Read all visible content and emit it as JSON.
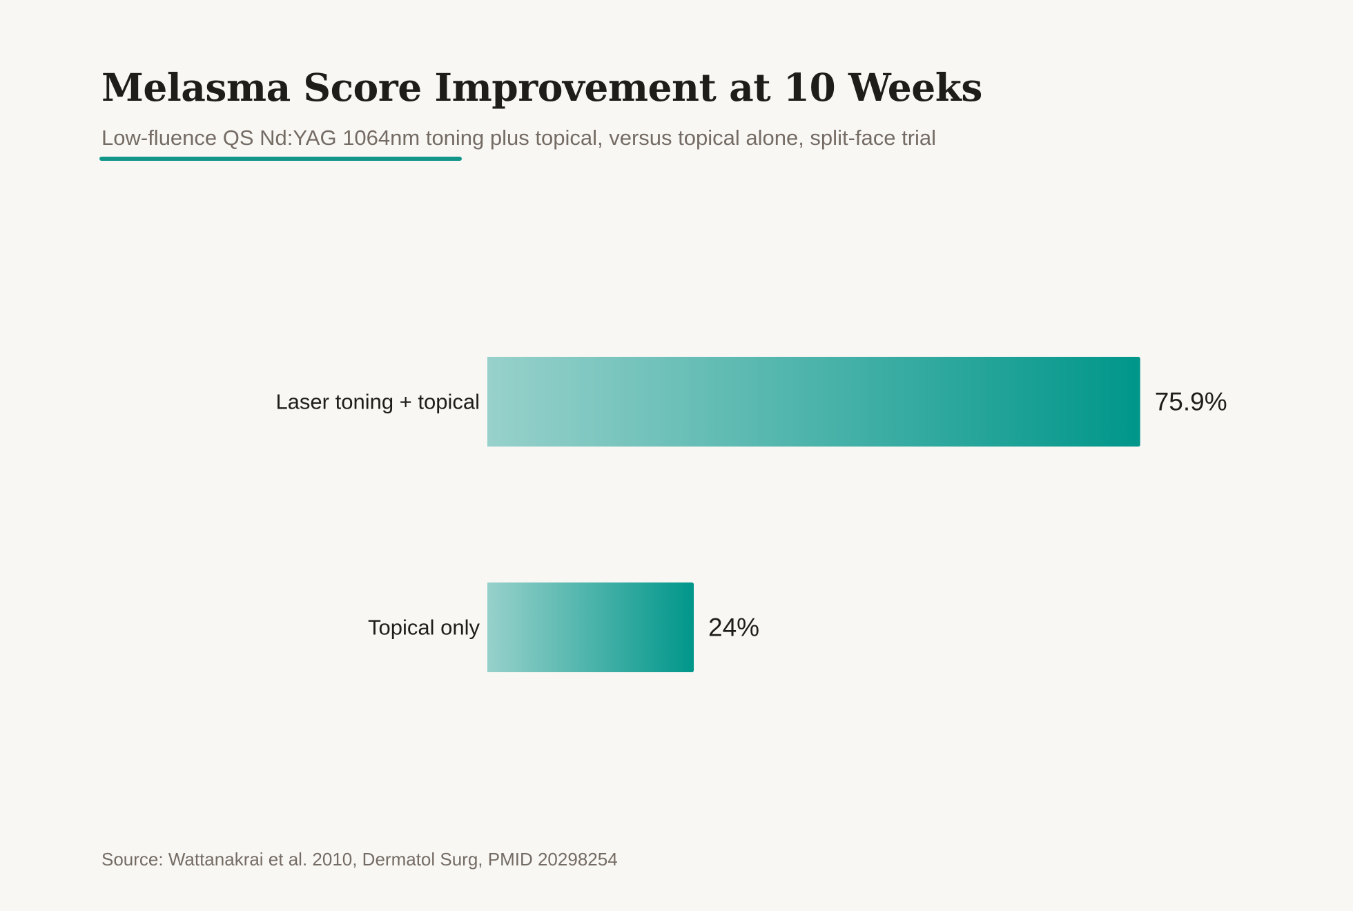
{
  "header": {
    "title": "Melasma Score Improvement at 10 Weeks",
    "subtitle": "Low-fluence QS Nd:YAG 1064nm toning plus topical, versus topical alone, split-face trial"
  },
  "footer": {
    "source": "Source: Wattanakrai et al. 2010, Dermatol Surg, PMID 20298254"
  },
  "chart_data": {
    "type": "bar",
    "orientation": "horizontal",
    "categories": [
      "Laser toning + topical",
      "Topical only"
    ],
    "values": [
      75.9,
      24
    ],
    "value_labels": [
      "75.9%",
      "24%"
    ],
    "title": "Melasma Score Improvement at 10 Weeks",
    "subtitle": "Low-fluence QS Nd:YAG 1064nm toning plus topical, versus topical alone, split-face trial",
    "grid": false,
    "colors": {
      "bar_start": "#98d1cb",
      "bar_end": "#00968a",
      "accent": "#12968a",
      "label_text": "#1f1d1a",
      "muted_text": "#746c64",
      "background": "#f9f7f4"
    }
  }
}
